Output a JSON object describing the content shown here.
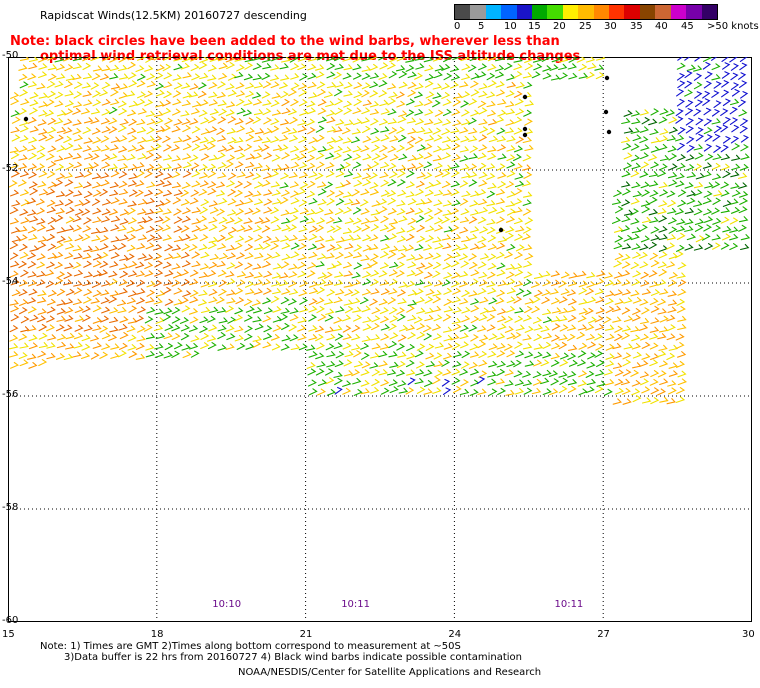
{
  "title": "Rapidscat Winds(12.5KM) 20160727 descending",
  "note": {
    "line1": "Note: black circles have been added to the wind barbs, wherever less than",
    "line2": "optimal wind retrieval conditions are met due to the ISS altitude changes"
  },
  "colorbar": {
    "labels": [
      "0",
      "5",
      "10",
      "15",
      "20",
      "25",
      "30",
      "35",
      "40",
      "45",
      ">50 knots"
    ],
    "colors": [
      "#4a4a4a",
      "#9a9a9a",
      "#00b4ff",
      "#0064ff",
      "#1a14c8",
      "#00aa00",
      "#44dd00",
      "#ffee00",
      "#ffbb00",
      "#ff8800",
      "#ff3300",
      "#dd0000",
      "#884400",
      "#cc6633",
      "#cc00cc",
      "#7700aa",
      "#330066"
    ]
  },
  "map": {
    "longitudes": [
      "15",
      "18",
      "21",
      "24",
      "27",
      "30"
    ],
    "latitudes": [
      "-50",
      "-52",
      "-54",
      "-56",
      "-58",
      "-60"
    ],
    "lon_range": [
      15,
      30
    ],
    "lat_range": [
      -50,
      -60
    ],
    "barb_colors": {
      "yellow": "#f2e200",
      "gold": "#ffc000",
      "orange": "#ff9a00",
      "dark_orange": "#e86a00",
      "green": "#1cb000",
      "dark_green": "#006400",
      "blue": "#1010d0",
      "black": "#000000"
    },
    "time_labels": [
      {
        "text": "10:10",
        "lon": 19.4
      },
      {
        "text": "10:11",
        "lon": 22.0
      },
      {
        "text": "10:11",
        "lon": 26.3
      }
    ]
  },
  "footnotes": {
    "line1": "Note: 1) Times are GMT 2)Times along bottom correspond to measurement at ~50S",
    "line2": "3)Data buffer is 22 hrs from 20160727 4) Black wind barbs indicate possible contamination"
  },
  "credit": "NOAA/NESDIS/Center for Satellite Applications and Research"
}
